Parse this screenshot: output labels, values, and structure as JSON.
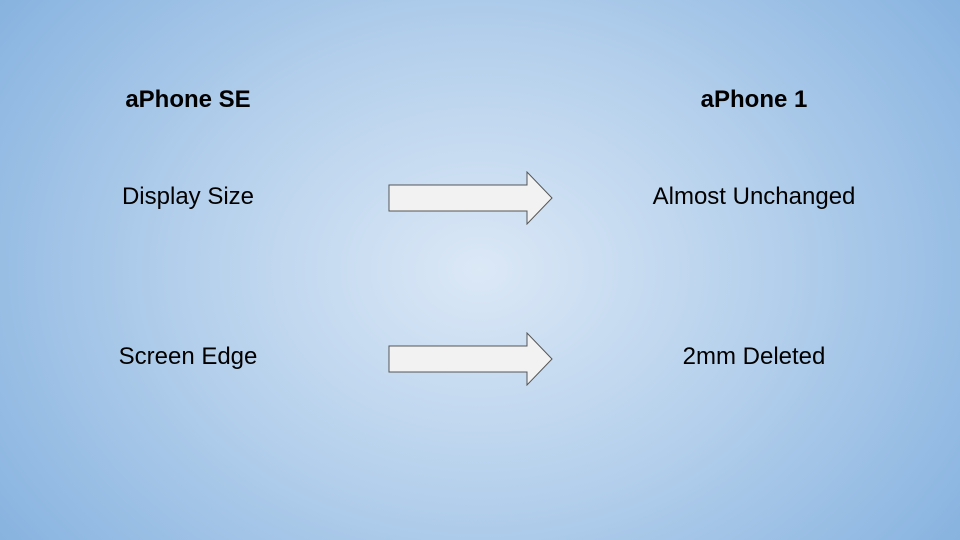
{
  "headers": {
    "left": "aPhone SE",
    "right": "aPhone 1"
  },
  "rows": [
    {
      "left": "Display Size",
      "right": "Almost Unchanged"
    },
    {
      "left": "Screen Edge",
      "right": "2mm Deleted"
    }
  ],
  "icons": {
    "row_arrow": "right-arrow-icon"
  },
  "colors": {
    "background_center": "#dbe8f6",
    "background_edge": "#77a6d8",
    "arrow_fill": "#f2f2f2",
    "arrow_stroke": "#555555",
    "text": "#000000"
  }
}
